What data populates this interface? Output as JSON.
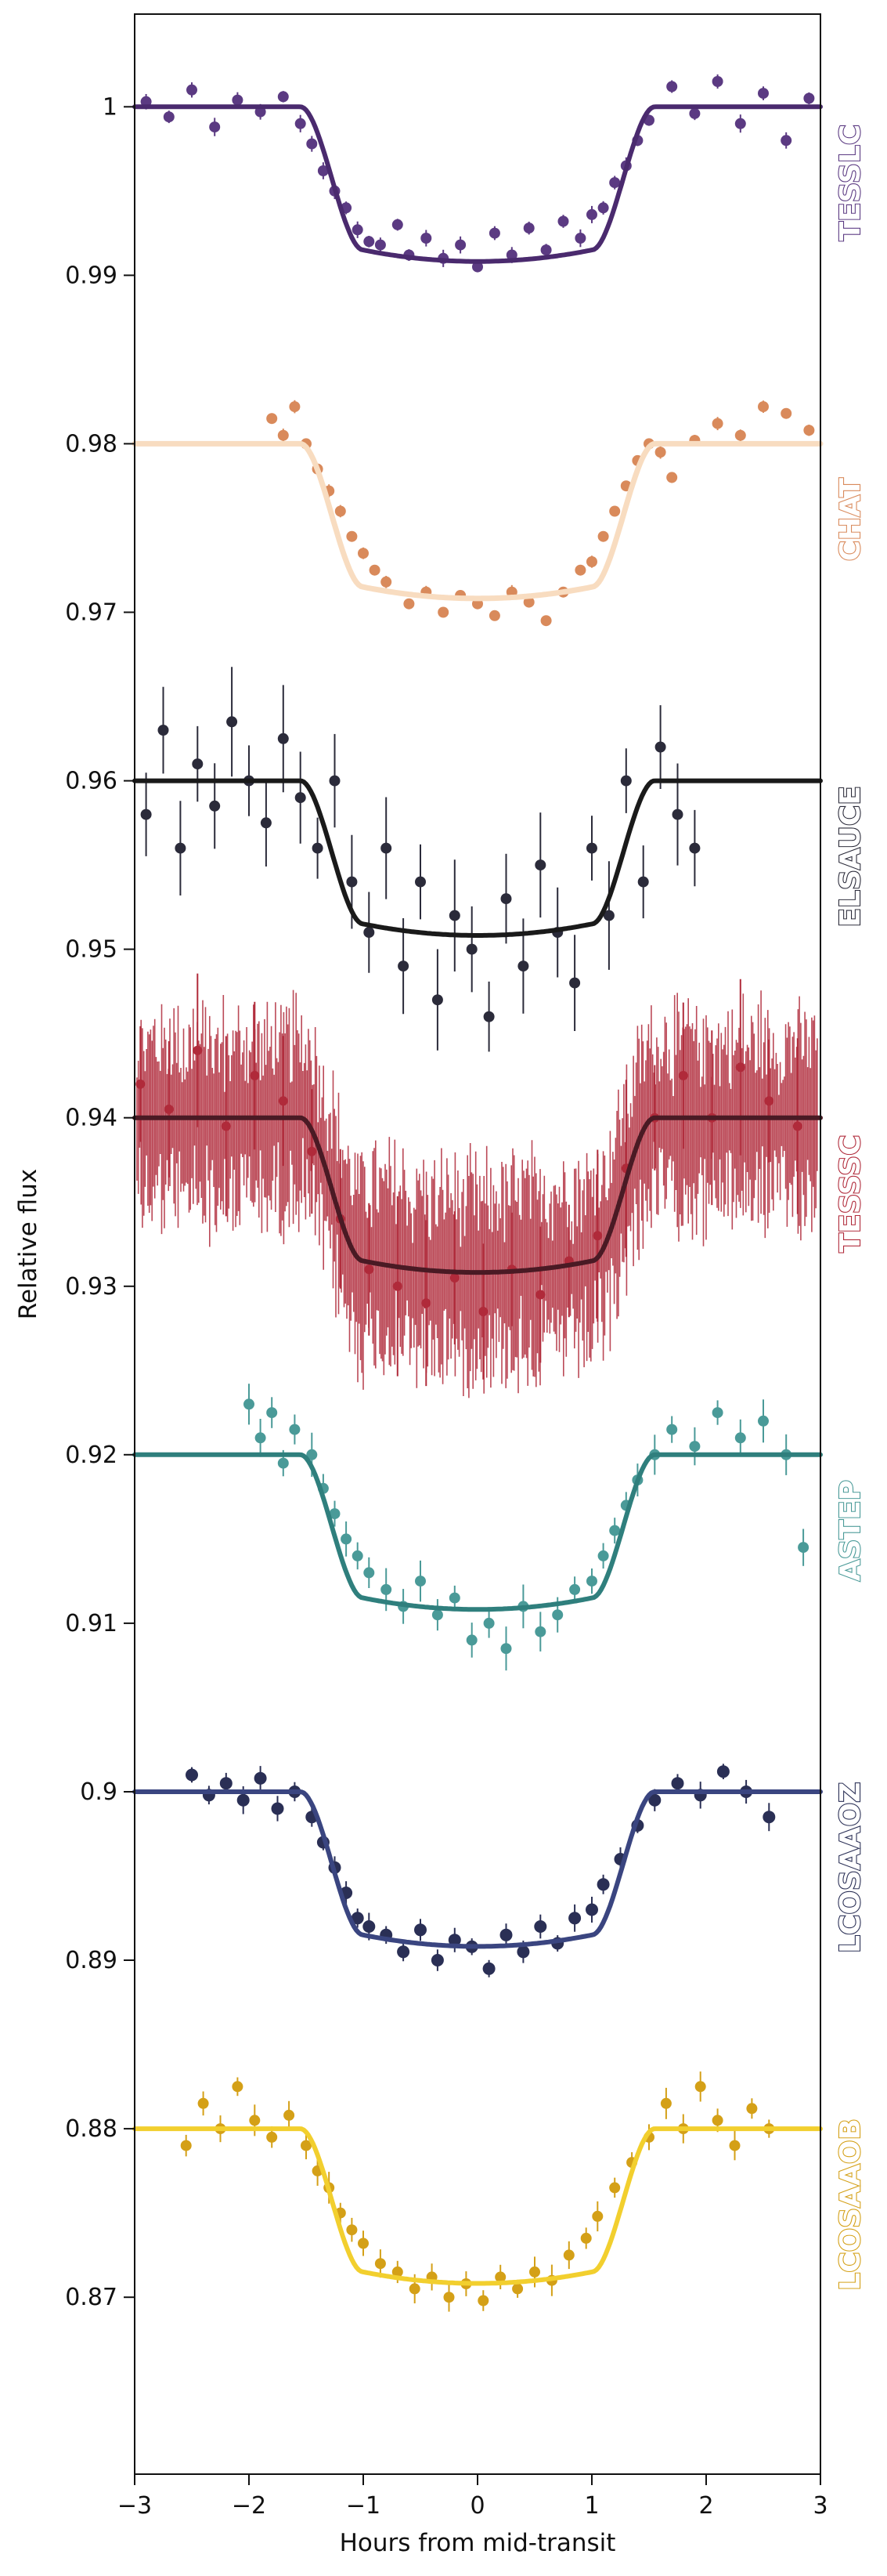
{
  "chart_data": {
    "type": "scatter",
    "xlabel": "Hours from mid-transit",
    "ylabel": "Relative flux",
    "xlim": [
      -3,
      3
    ],
    "ylim": [
      0.8595,
      1.0055
    ],
    "x_ticks": [
      -3,
      -2,
      -1,
      0,
      1,
      2,
      3
    ],
    "x_tick_labels": [
      "−3",
      "−2",
      "−1",
      "0",
      "1",
      "2",
      "3"
    ],
    "y_ticks": [
      0.87,
      0.88,
      0.89,
      0.9,
      0.91,
      0.92,
      0.93,
      0.94,
      0.95,
      0.96,
      0.97,
      0.98,
      0.99,
      1.0
    ],
    "y_tick_labels": [
      "0.87",
      "0.88",
      "0.89",
      "0.9",
      "0.91",
      "0.92",
      "0.93",
      "0.94",
      "0.95",
      "0.96",
      "0.97",
      "0.98",
      "0.99",
      "1"
    ],
    "grid": false,
    "legend": "instrument labels on right edge, rotated",
    "transit_model": {
      "depth": 0.0085,
      "half_total_duration_h": 1.55,
      "half_full_duration_h": 1.0
    },
    "series": [
      {
        "name": "TESSLC",
        "baseline": 1.0,
        "color": "#5b3a82",
        "model_color": "#4a2a6e",
        "points": [
          [
            -2.9,
            1.0003
          ],
          [
            -2.7,
            0.9994
          ],
          [
            -2.5,
            1.001
          ],
          [
            -2.3,
            0.9988
          ],
          [
            -2.1,
            1.0004
          ],
          [
            -1.9,
            0.9997
          ],
          [
            -1.7,
            1.0006
          ],
          [
            -1.55,
            0.999
          ],
          [
            -1.45,
            0.9978
          ],
          [
            -1.35,
            0.9962
          ],
          [
            -1.25,
            0.995
          ],
          [
            -1.15,
            0.994
          ],
          [
            -1.05,
            0.9927
          ],
          [
            -0.95,
            0.992
          ],
          [
            -0.85,
            0.9918
          ],
          [
            -0.7,
            0.993
          ],
          [
            -0.6,
            0.9912
          ],
          [
            -0.45,
            0.9922
          ],
          [
            -0.3,
            0.991
          ],
          [
            -0.15,
            0.9918
          ],
          [
            0.0,
            0.9905
          ],
          [
            0.15,
            0.9925
          ],
          [
            0.3,
            0.9912
          ],
          [
            0.45,
            0.9928
          ],
          [
            0.6,
            0.9915
          ],
          [
            0.75,
            0.9932
          ],
          [
            0.9,
            0.9922
          ],
          [
            1.0,
            0.9936
          ],
          [
            1.1,
            0.994
          ],
          [
            1.2,
            0.9955
          ],
          [
            1.3,
            0.9965
          ],
          [
            1.4,
            0.998
          ],
          [
            1.5,
            0.9992
          ],
          [
            1.7,
            1.0012
          ],
          [
            1.9,
            0.9996
          ],
          [
            2.1,
            1.0015
          ],
          [
            2.3,
            0.999
          ],
          [
            2.5,
            1.0008
          ],
          [
            2.7,
            0.998
          ],
          [
            2.9,
            1.0005
          ]
        ]
      },
      {
        "name": "CHAT",
        "baseline": 0.98,
        "color": "#d98a5b",
        "model_color": "#f8dcc0",
        "points": [
          [
            -1.8,
            0.9815
          ],
          [
            -1.7,
            0.9805
          ],
          [
            -1.6,
            0.9822
          ],
          [
            -1.5,
            0.98
          ],
          [
            -1.4,
            0.9785
          ],
          [
            -1.3,
            0.9772
          ],
          [
            -1.2,
            0.976
          ],
          [
            -1.1,
            0.9745
          ],
          [
            -1.0,
            0.9735
          ],
          [
            -0.9,
            0.9725
          ],
          [
            -0.8,
            0.9718
          ],
          [
            -0.6,
            0.9705
          ],
          [
            -0.45,
            0.9712
          ],
          [
            -0.3,
            0.97
          ],
          [
            -0.15,
            0.971
          ],
          [
            0.0,
            0.9705
          ],
          [
            0.15,
            0.9698
          ],
          [
            0.3,
            0.9712
          ],
          [
            0.45,
            0.9706
          ],
          [
            0.6,
            0.9695
          ],
          [
            0.75,
            0.9712
          ],
          [
            0.9,
            0.9725
          ],
          [
            1.0,
            0.973
          ],
          [
            1.1,
            0.9745
          ],
          [
            1.2,
            0.976
          ],
          [
            1.3,
            0.9775
          ],
          [
            1.4,
            0.979
          ],
          [
            1.5,
            0.98
          ],
          [
            1.6,
            0.9795
          ],
          [
            1.7,
            0.978
          ],
          [
            1.9,
            0.9802
          ],
          [
            2.1,
            0.9812
          ],
          [
            2.3,
            0.9805
          ],
          [
            2.5,
            0.9822
          ],
          [
            2.7,
            0.9818
          ],
          [
            2.9,
            0.9808
          ]
        ]
      },
      {
        "name": "ELSAUCE",
        "baseline": 0.96,
        "color": "#2b2b3a",
        "model_color": "#1a1a1a",
        "points": [
          [
            -2.9,
            0.958
          ],
          [
            -2.75,
            0.963
          ],
          [
            -2.6,
            0.956
          ],
          [
            -2.45,
            0.961
          ],
          [
            -2.3,
            0.9585
          ],
          [
            -2.15,
            0.9635
          ],
          [
            -2.0,
            0.96
          ],
          [
            -1.85,
            0.9575
          ],
          [
            -1.7,
            0.9625
          ],
          [
            -1.55,
            0.959
          ],
          [
            -1.4,
            0.956
          ],
          [
            -1.25,
            0.96
          ],
          [
            -1.1,
            0.954
          ],
          [
            -0.95,
            0.951
          ],
          [
            -0.8,
            0.956
          ],
          [
            -0.65,
            0.949
          ],
          [
            -0.5,
            0.954
          ],
          [
            -0.35,
            0.947
          ],
          [
            -0.2,
            0.952
          ],
          [
            -0.05,
            0.95
          ],
          [
            0.1,
            0.946
          ],
          [
            0.25,
            0.953
          ],
          [
            0.4,
            0.949
          ],
          [
            0.55,
            0.955
          ],
          [
            0.7,
            0.951
          ],
          [
            0.85,
            0.948
          ],
          [
            1.0,
            0.956
          ],
          [
            1.15,
            0.952
          ],
          [
            1.3,
            0.96
          ],
          [
            1.45,
            0.954
          ],
          [
            1.6,
            0.962
          ],
          [
            1.75,
            0.958
          ],
          [
            1.9,
            0.956
          ]
        ]
      },
      {
        "name": "TESSSC",
        "baseline": 0.94,
        "color": "#b02a3a",
        "model_color": "#4a1a24",
        "points": [
          [
            -2.95,
            0.942
          ],
          [
            -2.7,
            0.9405
          ],
          [
            -2.45,
            0.944
          ],
          [
            -2.2,
            0.9395
          ],
          [
            -1.95,
            0.9425
          ],
          [
            -1.7,
            0.941
          ],
          [
            -1.45,
            0.938
          ],
          [
            -1.2,
            0.934
          ],
          [
            -0.95,
            0.931
          ],
          [
            -0.7,
            0.93
          ],
          [
            -0.45,
            0.929
          ],
          [
            -0.2,
            0.9305
          ],
          [
            0.05,
            0.9285
          ],
          [
            0.3,
            0.931
          ],
          [
            0.55,
            0.9295
          ],
          [
            0.8,
            0.9315
          ],
          [
            1.05,
            0.933
          ],
          [
            1.3,
            0.937
          ],
          [
            1.55,
            0.94
          ],
          [
            1.8,
            0.9425
          ],
          [
            2.05,
            0.94
          ],
          [
            2.3,
            0.943
          ],
          [
            2.55,
            0.941
          ],
          [
            2.8,
            0.9395
          ]
        ]
      },
      {
        "name": "ASTEP",
        "baseline": 0.92,
        "color": "#4a9a98",
        "model_color": "#2f7f7d",
        "points": [
          [
            -2.0,
            0.923
          ],
          [
            -1.9,
            0.921
          ],
          [
            -1.8,
            0.9225
          ],
          [
            -1.7,
            0.9195
          ],
          [
            -1.6,
            0.9215
          ],
          [
            -1.45,
            0.92
          ],
          [
            -1.35,
            0.918
          ],
          [
            -1.25,
            0.9165
          ],
          [
            -1.15,
            0.915
          ],
          [
            -1.05,
            0.914
          ],
          [
            -0.95,
            0.913
          ],
          [
            -0.8,
            0.912
          ],
          [
            -0.65,
            0.911
          ],
          [
            -0.5,
            0.9125
          ],
          [
            -0.35,
            0.9105
          ],
          [
            -0.2,
            0.9115
          ],
          [
            -0.05,
            0.909
          ],
          [
            0.1,
            0.91
          ],
          [
            0.25,
            0.9085
          ],
          [
            0.4,
            0.911
          ],
          [
            0.55,
            0.9095
          ],
          [
            0.7,
            0.9105
          ],
          [
            0.85,
            0.912
          ],
          [
            1.0,
            0.9125
          ],
          [
            1.1,
            0.914
          ],
          [
            1.2,
            0.9155
          ],
          [
            1.3,
            0.917
          ],
          [
            1.4,
            0.9185
          ],
          [
            1.55,
            0.92
          ],
          [
            1.7,
            0.9215
          ],
          [
            1.9,
            0.9205
          ],
          [
            2.1,
            0.9225
          ],
          [
            2.3,
            0.921
          ],
          [
            2.5,
            0.922
          ],
          [
            2.7,
            0.92
          ],
          [
            2.85,
            0.9145
          ]
        ]
      },
      {
        "name": "LCOSAAOZ",
        "baseline": 0.9,
        "color": "#2a2f55",
        "model_color": "#3a4580",
        "points": [
          [
            -2.5,
            0.901
          ],
          [
            -2.35,
            0.8998
          ],
          [
            -2.2,
            0.9005
          ],
          [
            -2.05,
            0.8995
          ],
          [
            -1.9,
            0.9008
          ],
          [
            -1.75,
            0.899
          ],
          [
            -1.6,
            0.9
          ],
          [
            -1.45,
            0.8985
          ],
          [
            -1.35,
            0.897
          ],
          [
            -1.25,
            0.8955
          ],
          [
            -1.15,
            0.894
          ],
          [
            -1.05,
            0.8925
          ],
          [
            -0.95,
            0.892
          ],
          [
            -0.8,
            0.8915
          ],
          [
            -0.65,
            0.8905
          ],
          [
            -0.5,
            0.8918
          ],
          [
            -0.35,
            0.89
          ],
          [
            -0.2,
            0.8912
          ],
          [
            -0.05,
            0.8908
          ],
          [
            0.1,
            0.8895
          ],
          [
            0.25,
            0.8915
          ],
          [
            0.4,
            0.8905
          ],
          [
            0.55,
            0.892
          ],
          [
            0.7,
            0.891
          ],
          [
            0.85,
            0.8925
          ],
          [
            1.0,
            0.893
          ],
          [
            1.1,
            0.8945
          ],
          [
            1.25,
            0.896
          ],
          [
            1.4,
            0.898
          ],
          [
            1.55,
            0.8995
          ],
          [
            1.75,
            0.9005
          ],
          [
            1.95,
            0.8998
          ],
          [
            2.15,
            0.9012
          ],
          [
            2.35,
            0.9
          ],
          [
            2.55,
            0.8985
          ]
        ]
      },
      {
        "name": "LCOSAAOB",
        "baseline": 0.88,
        "color": "#d4a017",
        "model_color": "#f2cf2e",
        "points": [
          [
            -2.55,
            0.879
          ],
          [
            -2.4,
            0.8815
          ],
          [
            -2.25,
            0.88
          ],
          [
            -2.1,
            0.8825
          ],
          [
            -1.95,
            0.8805
          ],
          [
            -1.8,
            0.8795
          ],
          [
            -1.65,
            0.8808
          ],
          [
            -1.5,
            0.879
          ],
          [
            -1.4,
            0.8775
          ],
          [
            -1.3,
            0.8765
          ],
          [
            -1.2,
            0.875
          ],
          [
            -1.1,
            0.874
          ],
          [
            -1.0,
            0.8732
          ],
          [
            -0.85,
            0.872
          ],
          [
            -0.7,
            0.8715
          ],
          [
            -0.55,
            0.8705
          ],
          [
            -0.4,
            0.8712
          ],
          [
            -0.25,
            0.87
          ],
          [
            -0.1,
            0.8708
          ],
          [
            0.05,
            0.8698
          ],
          [
            0.2,
            0.8712
          ],
          [
            0.35,
            0.8705
          ],
          [
            0.5,
            0.8715
          ],
          [
            0.65,
            0.871
          ],
          [
            0.8,
            0.8725
          ],
          [
            0.95,
            0.8735
          ],
          [
            1.05,
            0.8748
          ],
          [
            1.2,
            0.8765
          ],
          [
            1.35,
            0.878
          ],
          [
            1.5,
            0.8795
          ],
          [
            1.65,
            0.8815
          ],
          [
            1.8,
            0.88
          ],
          [
            1.95,
            0.8825
          ],
          [
            2.1,
            0.8805
          ],
          [
            2.25,
            0.879
          ],
          [
            2.4,
            0.8812
          ],
          [
            2.55,
            0.88
          ]
        ]
      }
    ]
  }
}
